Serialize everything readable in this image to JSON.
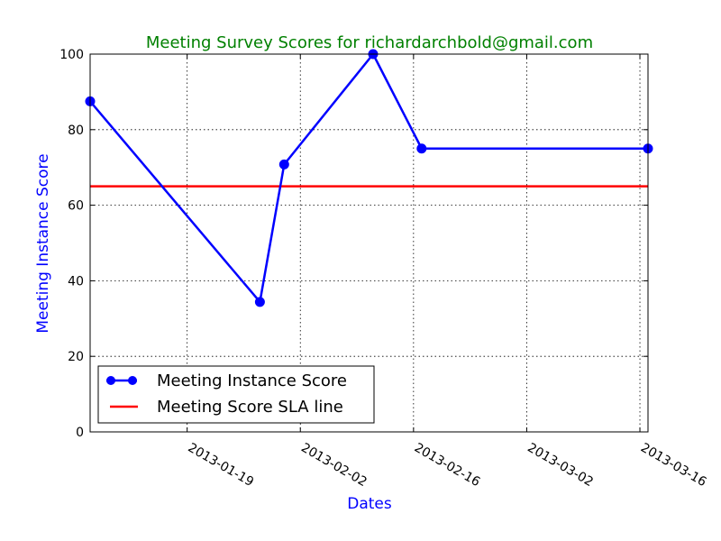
{
  "chart_data": {
    "type": "line",
    "title": "Meeting Survey Scores for richardarchbold@gmail.com",
    "title_color": "#008000",
    "xlabel": "Dates",
    "ylabel": "Meeting Instance Score",
    "label_color": "#0000ff",
    "x_ticks": [
      "2013-01-19",
      "2013-02-02",
      "2013-02-16",
      "2013-03-02",
      "2013-03-16"
    ],
    "y_ticks": [
      0,
      20,
      40,
      60,
      80,
      100
    ],
    "ylim": [
      0,
      100
    ],
    "xlim": [
      "2013-01-07",
      "2013-03-17"
    ],
    "grid": true,
    "legend_position": "lower-left",
    "series": [
      {
        "name": "Meeting Instance Score",
        "color": "#0000ff",
        "marker": "circle",
        "x": [
          "2013-01-07",
          "2013-01-28",
          "2013-01-31",
          "2013-02-11",
          "2013-02-17",
          "2013-03-17"
        ],
        "y": [
          87.5,
          34.4,
          70.8,
          100,
          75,
          75
        ]
      },
      {
        "name": "Meeting Score SLA line",
        "color": "#ff0000",
        "marker": "none",
        "constant_y": 65
      }
    ]
  }
}
